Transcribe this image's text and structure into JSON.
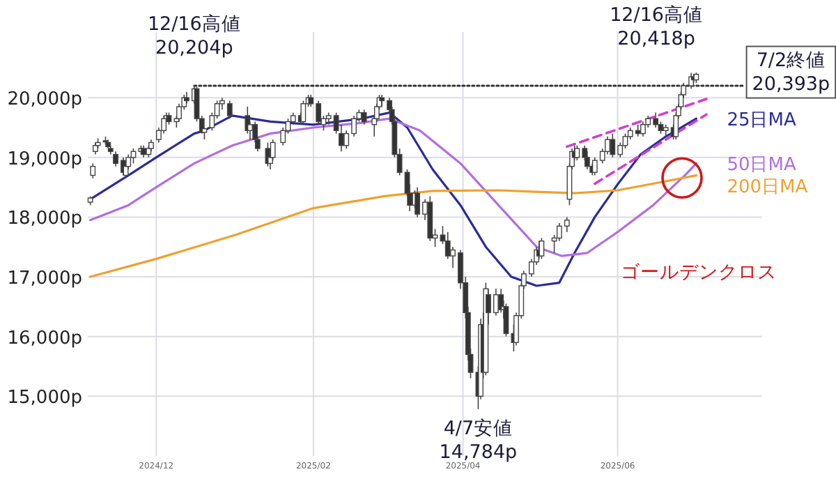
{
  "chart_data": {
    "type": "candlestick",
    "x": [
      "2024-11-05",
      "2024-11-06",
      "2024-11-07",
      "2024-11-08",
      "2024-11-11",
      "2024-11-12",
      "2024-11-13",
      "2024-11-15",
      "2024-11-18",
      "2024-11-19",
      "2024-11-20",
      "2024-11-22",
      "2024-11-25",
      "2024-11-26",
      "2024-11-28",
      "2024-11-29",
      "2024-12-02",
      "2024-12-04",
      "2024-12-05",
      "2024-12-06",
      "2024-12-09",
      "2024-12-10",
      "2024-12-12",
      "2024-12-13",
      "2024-12-16",
      "2024-12-17",
      "2024-12-19",
      "2024-12-20",
      "2024-12-23",
      "2024-12-25",
      "2024-12-27",
      "2024-12-30",
      "2025-01-06",
      "2025-01-07",
      "2025-01-09",
      "2025-01-10",
      "2025-01-14",
      "2025-01-15",
      "2025-01-16",
      "2025-01-20",
      "2025-01-22",
      "2025-01-24",
      "2025-01-27",
      "2025-01-28",
      "2025-01-30",
      "2025-01-31",
      "2025-02-03",
      "2025-02-05",
      "2025-02-07",
      "2025-02-10",
      "2025-02-12",
      "2025-02-14",
      "2025-02-17",
      "2025-02-19",
      "2025-02-21",
      "2025-02-25",
      "2025-02-26",
      "2025-02-27",
      "2025-02-28",
      "2025-03-03",
      "2025-03-04",
      "2025-03-05",
      "2025-03-07",
      "2025-03-10",
      "2025-03-11",
      "2025-03-13",
      "2025-03-14",
      "2025-03-17",
      "2025-03-19",
      "2025-03-21",
      "2025-03-24",
      "2025-03-26",
      "2025-03-28",
      "2025-03-31",
      "2025-04-02",
      "2025-04-03",
      "2025-04-04",
      "2025-04-07",
      "2025-04-08",
      "2025-04-09",
      "2025-04-10",
      "2025-04-11",
      "2025-04-14",
      "2025-04-16",
      "2025-04-17",
      "2025-04-18",
      "2025-04-21",
      "2025-04-22",
      "2025-04-24",
      "2025-04-25",
      "2025-04-28",
      "2025-04-30",
      "2025-05-01",
      "2025-05-02",
      "2025-05-07",
      "2025-05-09",
      "2025-05-12",
      "2025-05-13",
      "2025-05-14",
      "2025-05-15",
      "2025-05-16",
      "2025-05-19",
      "2025-05-20",
      "2025-05-22",
      "2025-05-23",
      "2025-05-26",
      "2025-05-28",
      "2025-05-30",
      "2025-06-02",
      "2025-06-04",
      "2025-06-06",
      "2025-06-09",
      "2025-06-11",
      "2025-06-13",
      "2025-06-16",
      "2025-06-18",
      "2025-06-20",
      "2025-06-23",
      "2025-06-24",
      "2025-06-25",
      "2025-06-26",
      "2025-06-27",
      "2025-06-30",
      "2025-07-01",
      "2025-07-02"
    ],
    "ohlc": [
      [
        18250,
        18350,
        18200,
        18320
      ],
      [
        18700,
        18900,
        18650,
        18850
      ],
      [
        19100,
        19250,
        19050,
        19200
      ],
      [
        19200,
        19320,
        19150,
        19250
      ],
      [
        19280,
        19350,
        19220,
        19260
      ],
      [
        19250,
        19300,
        19150,
        19180
      ],
      [
        19150,
        19200,
        19050,
        19100
      ],
      [
        19050,
        19100,
        18850,
        18900
      ],
      [
        18950,
        19000,
        18700,
        18750
      ],
      [
        18700,
        18900,
        18650,
        18850
      ],
      [
        18850,
        19050,
        18800,
        19000
      ],
      [
        19000,
        19150,
        18900,
        19100
      ],
      [
        19100,
        19200,
        19050,
        19150
      ],
      [
        19150,
        19200,
        19000,
        19050
      ],
      [
        19050,
        19200,
        19000,
        19150
      ],
      [
        19150,
        19300,
        19100,
        19250
      ],
      [
        19300,
        19500,
        19250,
        19450
      ],
      [
        19450,
        19700,
        19400,
        19650
      ],
      [
        19650,
        19750,
        19600,
        19700
      ],
      [
        19700,
        19750,
        19550,
        19600
      ],
      [
        19600,
        19700,
        19500,
        19650
      ],
      [
        19650,
        19900,
        19600,
        19850
      ],
      [
        19850,
        20050,
        19800,
        20000
      ],
      [
        20000,
        20100,
        19900,
        19950
      ],
      [
        19950,
        20204,
        19900,
        20150
      ],
      [
        20150,
        20180,
        19600,
        19650
      ],
      [
        19650,
        19700,
        19400,
        19420
      ],
      [
        19420,
        19500,
        19300,
        19480
      ],
      [
        19500,
        19750,
        19450,
        19700
      ],
      [
        19700,
        19950,
        19650,
        19900
      ],
      [
        19900,
        20000,
        19800,
        19950
      ],
      [
        19900,
        19950,
        19650,
        19700
      ],
      [
        19700,
        19850,
        19400,
        19450
      ],
      [
        19450,
        19600,
        19300,
        19550
      ],
      [
        19550,
        19600,
        19250,
        19300
      ],
      [
        19300,
        19350,
        19100,
        19150
      ],
      [
        19150,
        19250,
        18850,
        18900
      ],
      [
        18900,
        19050,
        18800,
        19000
      ],
      [
        19000,
        19300,
        18950,
        19250
      ],
      [
        19250,
        19500,
        19200,
        19450
      ],
      [
        19450,
        19650,
        19400,
        19600
      ],
      [
        19600,
        19750,
        19550,
        19700
      ],
      [
        19700,
        19750,
        19550,
        19600
      ],
      [
        19600,
        19950,
        19550,
        19900
      ],
      [
        19900,
        20050,
        19850,
        20000
      ],
      [
        20000,
        20050,
        19850,
        19900
      ],
      [
        19900,
        19950,
        19550,
        19600
      ],
      [
        19550,
        19700,
        19450,
        19650
      ],
      [
        19650,
        19750,
        19550,
        19700
      ],
      [
        19700,
        19750,
        19400,
        19450
      ],
      [
        19400,
        19550,
        19100,
        19200
      ],
      [
        19200,
        19450,
        19150,
        19400
      ],
      [
        19400,
        19700,
        19350,
        19650
      ],
      [
        19650,
        19800,
        19600,
        19750
      ],
      [
        19750,
        19800,
        19550,
        19600
      ],
      [
        19550,
        19700,
        19350,
        19650
      ],
      [
        19650,
        19900,
        19600,
        19850
      ],
      [
        19850,
        20050,
        19800,
        20000
      ],
      [
        20000,
        20050,
        19850,
        19950
      ],
      [
        19950,
        20000,
        19750,
        19800
      ],
      [
        19800,
        19850,
        19550,
        19600
      ],
      [
        19600,
        19650,
        19000,
        19050
      ],
      [
        19050,
        19150,
        18700,
        18750
      ],
      [
        18750,
        18800,
        18350,
        18400
      ],
      [
        18400,
        18550,
        18100,
        18200
      ],
      [
        18200,
        18450,
        18150,
        18400
      ],
      [
        18400,
        18500,
        18000,
        18050
      ],
      [
        18050,
        18300,
        17950,
        18250
      ],
      [
        18250,
        18350,
        17600,
        17650
      ],
      [
        17650,
        17800,
        17500,
        17700
      ],
      [
        17700,
        17850,
        17550,
        17600
      ],
      [
        17600,
        17750,
        17300,
        17350
      ],
      [
        17350,
        17500,
        17150,
        17450
      ],
      [
        17400,
        17450,
        16800,
        16900
      ],
      [
        16900,
        17000,
        16300,
        16400
      ],
      [
        16400,
        16500,
        15600,
        15700
      ],
      [
        15700,
        15800,
        15300,
        15400
      ],
      [
        15400,
        15500,
        14784,
        15000
      ],
      [
        15000,
        16300,
        14950,
        16200
      ],
      [
        16200,
        16400,
        15300,
        15400
      ],
      [
        15400,
        16900,
        15350,
        16800
      ],
      [
        16700,
        16800,
        16200,
        16400
      ],
      [
        16400,
        16800,
        16350,
        16700
      ],
      [
        16700,
        16800,
        16400,
        16450
      ],
      [
        16450,
        16600,
        16300,
        16500
      ],
      [
        16500,
        16550,
        16000,
        16050
      ],
      [
        16050,
        16200,
        15750,
        15900
      ],
      [
        15900,
        16400,
        15850,
        16350
      ],
      [
        16350,
        16900,
        16300,
        16850
      ],
      [
        16850,
        17100,
        16800,
        17050
      ],
      [
        17050,
        17300,
        17000,
        17250
      ],
      [
        17250,
        17500,
        17200,
        17450
      ],
      [
        17450,
        17600,
        17300,
        17350
      ],
      [
        17350,
        17650,
        17300,
        17600
      ],
      [
        17600,
        17700,
        17400,
        17650
      ],
      [
        17650,
        17900,
        17600,
        17850
      ],
      [
        17850,
        18000,
        17750,
        17950
      ],
      [
        18300,
        18900,
        18200,
        18850
      ],
      [
        18850,
        19150,
        18800,
        19100
      ],
      [
        19100,
        19200,
        18950,
        19000
      ],
      [
        19000,
        19200,
        18950,
        19150
      ],
      [
        19150,
        19200,
        18950,
        19000
      ],
      [
        19000,
        19100,
        18800,
        18850
      ],
      [
        18850,
        18900,
        18700,
        18750
      ],
      [
        18750,
        19000,
        18700,
        18950
      ],
      [
        18950,
        19150,
        18900,
        19100
      ],
      [
        19100,
        19350,
        19050,
        19300
      ],
      [
        19300,
        19400,
        19000,
        19050
      ],
      [
        19050,
        19250,
        19000,
        19200
      ],
      [
        19200,
        19400,
        19150,
        19350
      ],
      [
        19350,
        19500,
        19300,
        19450
      ],
      [
        19450,
        19550,
        19350,
        19400
      ],
      [
        19400,
        19600,
        19350,
        19550
      ],
      [
        19550,
        19700,
        19500,
        19650
      ],
      [
        19650,
        19750,
        19500,
        19550
      ],
      [
        19550,
        19600,
        19400,
        19450
      ],
      [
        19450,
        19550,
        19350,
        19500
      ],
      [
        19500,
        19550,
        19300,
        19350
      ],
      [
        19350,
        19750,
        19300,
        19700
      ],
      [
        19700,
        19900,
        19650,
        19850
      ],
      [
        19850,
        20100,
        19800,
        20050
      ],
      [
        20050,
        20250,
        20000,
        20200
      ],
      [
        20200,
        20418,
        20150,
        20350
      ],
      [
        20350,
        20400,
        20250,
        20300
      ],
      [
        20300,
        20420,
        20250,
        20393
      ]
    ],
    "series": [
      {
        "type": "line",
        "name": "25日MA",
        "color": "#2b2b9b",
        "line_style": "solid",
        "x": [
          "2024-11-05",
          "2024-11-20",
          "2024-12-01",
          "2024-12-16",
          "2024-12-20",
          "2024-12-31",
          "2025-01-15",
          "2025-02-01",
          "2025-02-20",
          "2025-03-03",
          "2025-03-10",
          "2025-03-20",
          "2025-03-31",
          "2025-04-10",
          "2025-04-20",
          "2025-04-30",
          "2025-05-09",
          "2025-05-15",
          "2025-05-23",
          "2025-06-01",
          "2025-06-10",
          "2025-06-20",
          "2025-07-02"
        ],
        "values": [
          18300,
          18700,
          19000,
          19400,
          19450,
          19700,
          19600,
          19550,
          19650,
          19750,
          19500,
          18800,
          18200,
          17500,
          17000,
          16850,
          16900,
          17400,
          18000,
          18550,
          19050,
          19350,
          19650
        ]
      },
      {
        "type": "line",
        "name": "50日MA",
        "color": "#b26ee0",
        "line_style": "solid",
        "x": [
          "2024-11-05",
          "2024-11-20",
          "2024-12-01",
          "2024-12-16",
          "2024-12-31",
          "2025-01-15",
          "2025-02-01",
          "2025-02-20",
          "2025-03-03",
          "2025-03-15",
          "2025-03-31",
          "2025-04-15",
          "2025-04-30",
          "2025-05-10",
          "2025-05-20",
          "2025-06-01",
          "2025-06-15",
          "2025-06-28",
          "2025-07-02"
        ],
        "values": [
          17950,
          18200,
          18500,
          18900,
          19200,
          19400,
          19500,
          19580,
          19650,
          19450,
          18900,
          18200,
          17500,
          17350,
          17400,
          17750,
          18200,
          18720,
          18900
        ]
      },
      {
        "type": "line",
        "name": "200日MA",
        "color": "#f0a030",
        "line_style": "solid",
        "x": [
          "2024-11-05",
          "2024-12-01",
          "2025-01-01",
          "2025-02-01",
          "2025-03-01",
          "2025-03-20",
          "2025-04-15",
          "2025-05-15",
          "2025-06-01",
          "2025-06-20",
          "2025-07-02"
        ],
        "values": [
          17000,
          17300,
          17700,
          18150,
          18350,
          18440,
          18450,
          18400,
          18450,
          18600,
          18700
        ]
      },
      {
        "type": "line",
        "color": "#d040d0",
        "line_style": "dashed",
        "x": [
          "2025-05-12",
          "2025-07-06"
        ],
        "values": [
          19180,
          19980
        ]
      },
      {
        "type": "line",
        "color": "#d040d0",
        "line_style": "dashed",
        "x": [
          "2025-05-23",
          "2025-07-06"
        ],
        "values": [
          18560,
          19720
        ]
      },
      {
        "type": "line",
        "color": "#333333",
        "line_style": "dotted",
        "x": [
          "2024-12-16",
          "2025-07-21"
        ],
        "values": [
          20200,
          20200
        ]
      }
    ],
    "xlim": [
      "2024-11-04",
      "2025-07-28"
    ],
    "xticks": [
      {
        "value": "2024-12-01",
        "label": "2024/12"
      },
      {
        "value": "2025-02-01",
        "label": "2025/02"
      },
      {
        "value": "2025-04-01",
        "label": "2025/04"
      },
      {
        "value": "2025-06-01",
        "label": "2025/06"
      }
    ],
    "ylim": [
      14000,
      21100
    ],
    "yticks": [
      {
        "value": 15000,
        "label": "15,000p"
      },
      {
        "value": 16000,
        "label": "16,000p"
      },
      {
        "value": 17000,
        "label": "17,000p"
      },
      {
        "value": 18000,
        "label": "18,000p"
      },
      {
        "value": 19000,
        "label": "19,000p"
      },
      {
        "value": 20000,
        "label": "20,000p"
      }
    ],
    "grid": true,
    "annotations": [
      {
        "text": "12/16高値\n20,204p",
        "x": "2024-12-16",
        "y": 20204
      },
      {
        "text": "12/16高値\n20,418p",
        "x": "2025-06-30",
        "y": 20418
      },
      {
        "text": "7/2終値\n20,393p",
        "x": "2025-07-02",
        "y": 20393
      },
      {
        "text": "4/7安値\n14,784p",
        "x": "2025-04-07",
        "y": 14784
      },
      "ゴールデンクロス"
    ]
  }
}
